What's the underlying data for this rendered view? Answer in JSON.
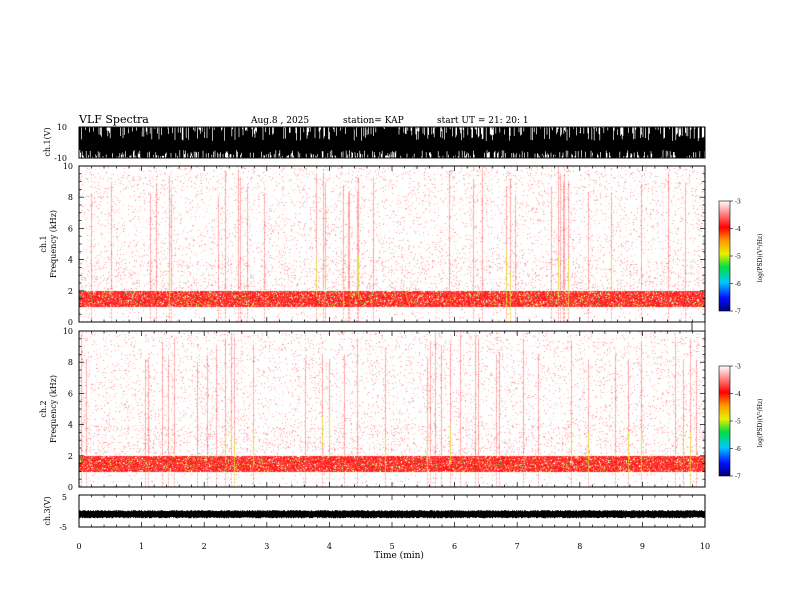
{
  "header": {
    "title": "VLF Spectra",
    "date": "Aug.8  , 2025",
    "station": "station= KAP",
    "start": "start  UT  =    21: 20: 1"
  },
  "chart_data": [
    {
      "type": "line",
      "name": "ch1-waveform",
      "ylabel": "ch.1(V)",
      "ylim": [
        -10,
        10
      ],
      "ytick_labels": [
        "10",
        "-10"
      ],
      "note": "dense broadband waveform saturating near +/-10 V"
    },
    {
      "type": "heatmap",
      "name": "ch1-spectrogram",
      "ylabel_line1": "ch.1",
      "ylabel_line2": "Frequency  (kHz)",
      "xlim": [
        0,
        10
      ],
      "ylim": [
        0,
        10
      ],
      "ytick_labels": [
        "0",
        "2",
        "4",
        "6",
        "8",
        "10"
      ],
      "yticks": [
        0,
        2,
        4,
        6,
        8,
        10
      ],
      "band_kHz": [
        1.0,
        2.0
      ],
      "colorbar": {
        "label": "log(PSD)(V²/Hz)",
        "ticks": [
          -3,
          -4,
          -5,
          -6,
          -7
        ],
        "tick_labels": [
          "-3",
          "-4",
          "-5",
          "-6",
          "-7"
        ]
      }
    },
    {
      "type": "heatmap",
      "name": "ch2-spectrogram",
      "ylabel_line1": "ch.2",
      "ylabel_line2": "Frequency  (kHz)",
      "xlim": [
        0,
        10
      ],
      "ylim": [
        0,
        10
      ],
      "ytick_labels": [
        "0",
        "2",
        "4",
        "6",
        "8",
        "10"
      ],
      "yticks": [
        0,
        2,
        4,
        6,
        8,
        10
      ],
      "band_kHz": [
        1.0,
        2.0
      ],
      "colorbar": {
        "label": "log(PSD)(V²/Hz)",
        "ticks": [
          -3,
          -4,
          -5,
          -6,
          -7
        ],
        "tick_labels": [
          "-3",
          "-4",
          "-5",
          "-6",
          "-7"
        ]
      }
    },
    {
      "type": "line",
      "name": "ch3-waveform",
      "ylabel": "ch.3(V)",
      "ylim": [
        -5,
        5
      ],
      "ytick_labels": [
        "5",
        "-5"
      ],
      "note": "narrow waveform band near -1 V"
    }
  ],
  "xaxis": {
    "label": "Time  (min)",
    "ticks": [
      0,
      1,
      2,
      3,
      4,
      5,
      6,
      7,
      8,
      9,
      10
    ],
    "tick_labels": [
      "0",
      "1",
      "2",
      "3",
      "4",
      "5",
      "6",
      "7",
      "8",
      "9",
      "10"
    ]
  },
  "colors": {
    "ink": "#000000",
    "spec_light": "#ffd6d6",
    "spec_red": "#ff1a1a",
    "spec_yellow": "#e9e53c",
    "spec_green": "#2ec83a"
  }
}
